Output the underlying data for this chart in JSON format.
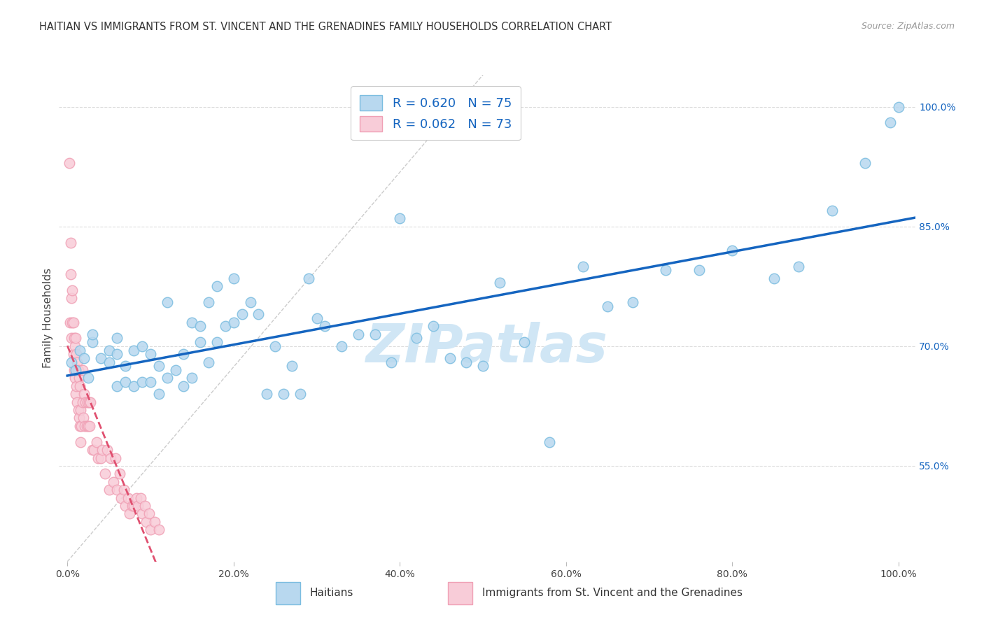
{
  "title": "HAITIAN VS IMMIGRANTS FROM ST. VINCENT AND THE GRENADINES FAMILY HOUSEHOLDS CORRELATION CHART",
  "source": "Source: ZipAtlas.com",
  "ylabel": "Family Households",
  "x_ticks": [
    "0.0%",
    "20.0%",
    "40.0%",
    "60.0%",
    "80.0%",
    "100.0%"
  ],
  "x_tick_vals": [
    0.0,
    0.2,
    0.4,
    0.6,
    0.8,
    1.0
  ],
  "y_ticks_right": [
    "55.0%",
    "70.0%",
    "85.0%",
    "100.0%"
  ],
  "y_tick_vals_right": [
    0.55,
    0.7,
    0.85,
    1.0
  ],
  "xlim": [
    -0.01,
    1.02
  ],
  "ylim": [
    0.43,
    1.04
  ],
  "blue_color": "#7bbde0",
  "blue_face": "#b8d8ef",
  "pink_color": "#f0a0b5",
  "pink_face": "#f8ccd8",
  "regression_blue": "#1565c0",
  "regression_pink": "#e05070",
  "diagonal_color": "#cccccc",
  "watermark_color": "#d0e6f5",
  "background_color": "#ffffff",
  "grid_color": "#dddddd",
  "blue_x": [
    0.005,
    0.01,
    0.015,
    0.02,
    0.025,
    0.03,
    0.03,
    0.04,
    0.05,
    0.05,
    0.06,
    0.06,
    0.06,
    0.07,
    0.07,
    0.08,
    0.08,
    0.09,
    0.09,
    0.1,
    0.1,
    0.11,
    0.11,
    0.12,
    0.12,
    0.13,
    0.14,
    0.14,
    0.15,
    0.15,
    0.16,
    0.16,
    0.17,
    0.17,
    0.18,
    0.18,
    0.19,
    0.2,
    0.2,
    0.21,
    0.22,
    0.23,
    0.24,
    0.25,
    0.26,
    0.27,
    0.28,
    0.29,
    0.3,
    0.31,
    0.33,
    0.35,
    0.37,
    0.39,
    0.4,
    0.42,
    0.44,
    0.46,
    0.48,
    0.5,
    0.52,
    0.55,
    0.58,
    0.62,
    0.65,
    0.68,
    0.72,
    0.76,
    0.8,
    0.85,
    0.88,
    0.92,
    0.96,
    0.99,
    1.0
  ],
  "blue_y": [
    0.68,
    0.67,
    0.695,
    0.685,
    0.66,
    0.705,
    0.715,
    0.685,
    0.68,
    0.695,
    0.65,
    0.69,
    0.71,
    0.655,
    0.675,
    0.65,
    0.695,
    0.655,
    0.7,
    0.655,
    0.69,
    0.64,
    0.675,
    0.66,
    0.755,
    0.67,
    0.65,
    0.69,
    0.66,
    0.73,
    0.705,
    0.725,
    0.68,
    0.755,
    0.705,
    0.775,
    0.725,
    0.73,
    0.785,
    0.74,
    0.755,
    0.74,
    0.64,
    0.7,
    0.64,
    0.675,
    0.64,
    0.785,
    0.735,
    0.725,
    0.7,
    0.715,
    0.715,
    0.68,
    0.86,
    0.71,
    0.725,
    0.685,
    0.68,
    0.675,
    0.78,
    0.705,
    0.58,
    0.8,
    0.75,
    0.755,
    0.795,
    0.795,
    0.82,
    0.785,
    0.8,
    0.87,
    0.93,
    0.98,
    1.0
  ],
  "pink_x": [
    0.002,
    0.003,
    0.004,
    0.004,
    0.005,
    0.005,
    0.006,
    0.006,
    0.007,
    0.007,
    0.008,
    0.008,
    0.009,
    0.009,
    0.01,
    0.01,
    0.01,
    0.011,
    0.011,
    0.012,
    0.012,
    0.013,
    0.013,
    0.014,
    0.014,
    0.015,
    0.015,
    0.016,
    0.016,
    0.017,
    0.018,
    0.018,
    0.019,
    0.02,
    0.021,
    0.022,
    0.023,
    0.024,
    0.025,
    0.026,
    0.027,
    0.028,
    0.03,
    0.032,
    0.035,
    0.037,
    0.04,
    0.042,
    0.045,
    0.048,
    0.05,
    0.052,
    0.055,
    0.058,
    0.06,
    0.063,
    0.065,
    0.068,
    0.07,
    0.073,
    0.075,
    0.078,
    0.08,
    0.083,
    0.085,
    0.088,
    0.09,
    0.093,
    0.095,
    0.098,
    0.1,
    0.105,
    0.11
  ],
  "pink_y": [
    0.93,
    0.73,
    0.79,
    0.83,
    0.71,
    0.76,
    0.73,
    0.77,
    0.69,
    0.73,
    0.67,
    0.71,
    0.66,
    0.7,
    0.64,
    0.67,
    0.71,
    0.65,
    0.69,
    0.63,
    0.68,
    0.62,
    0.67,
    0.61,
    0.66,
    0.6,
    0.65,
    0.58,
    0.62,
    0.6,
    0.63,
    0.67,
    0.61,
    0.64,
    0.6,
    0.63,
    0.6,
    0.63,
    0.6,
    0.63,
    0.6,
    0.63,
    0.57,
    0.57,
    0.58,
    0.56,
    0.56,
    0.57,
    0.54,
    0.57,
    0.52,
    0.56,
    0.53,
    0.56,
    0.52,
    0.54,
    0.51,
    0.52,
    0.5,
    0.51,
    0.49,
    0.5,
    0.5,
    0.51,
    0.5,
    0.51,
    0.49,
    0.5,
    0.48,
    0.49,
    0.47,
    0.48,
    0.47
  ]
}
